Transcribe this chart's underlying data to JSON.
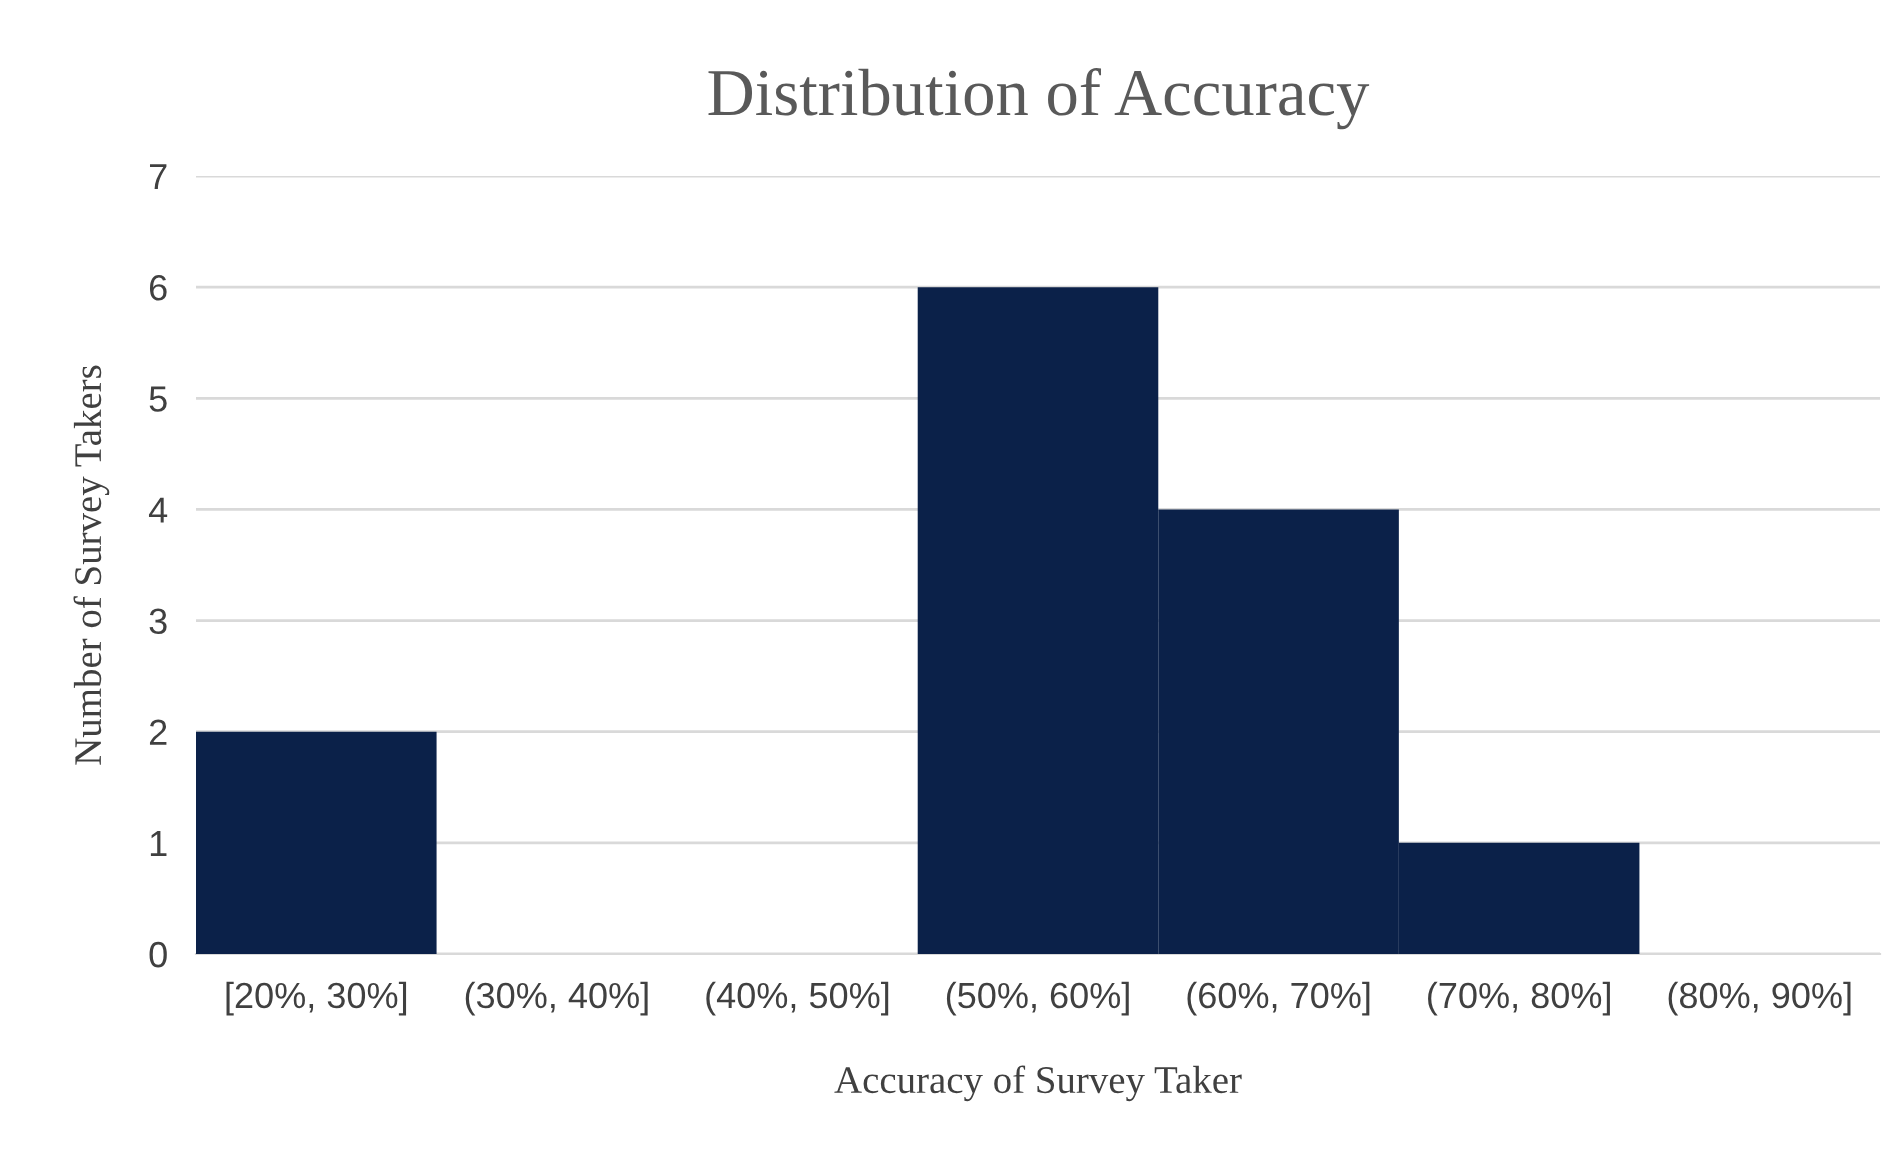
{
  "chart_data": {
    "type": "bar",
    "title": "Distribution of Accuracy",
    "xlabel": "Accuracy of Survey Taker",
    "ylabel": "Number of Survey Takers",
    "categories": [
      "[20%, 30%]",
      "(30%, 40%]",
      "(40%, 50%]",
      "(50%, 60%]",
      "(60%, 70%]",
      "(70%, 80%]",
      "(80%, 90%]"
    ],
    "values": [
      2,
      0,
      0,
      6,
      4,
      1,
      0
    ],
    "color": "#0b2149",
    "ylim": [
      0,
      7
    ],
    "yticks": [
      0,
      1,
      2,
      3,
      4,
      5,
      6,
      7
    ],
    "grid": "y",
    "legend": false
  }
}
